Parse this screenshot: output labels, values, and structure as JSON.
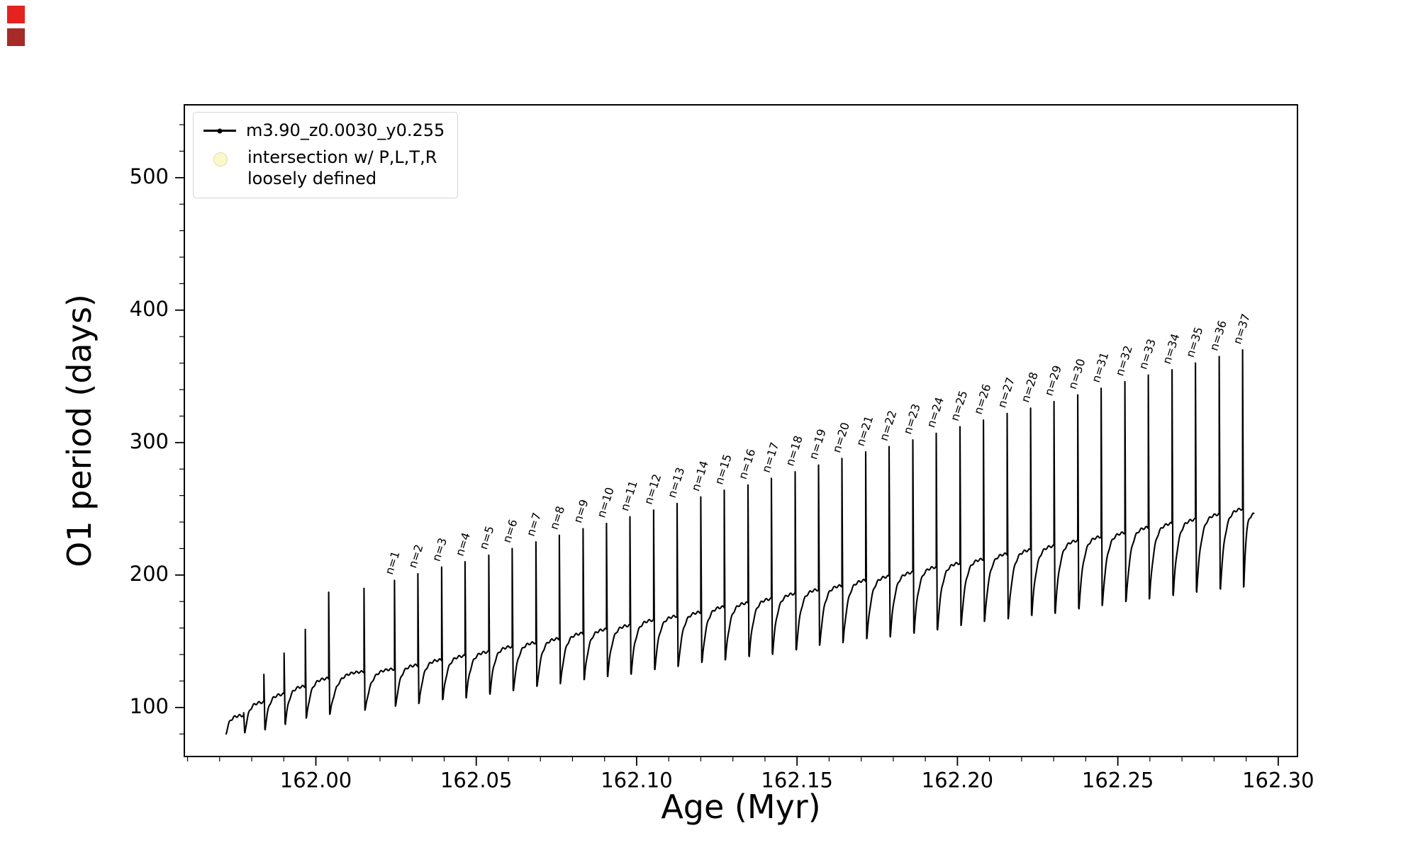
{
  "corner_marks": [
    {
      "name": "red-square-1",
      "color": "#e42320"
    },
    {
      "name": "red-square-2",
      "color": "#a62a28"
    }
  ],
  "axes": {
    "xlabel": "Age (Myr)",
    "ylabel": "O1 period (days)"
  },
  "legend": {
    "series_label": "m3.90_z0.0030_y0.255",
    "intersection_label_line1": "intersection w/ P,L,T,R",
    "intersection_label_line2": "loosely defined",
    "intersection_marker_color": "#fbf8c9",
    "line_color": "#000000"
  },
  "chart_data": {
    "type": "line",
    "title": "",
    "xlabel": "Age (Myr)",
    "ylabel": "O1 period (days)",
    "xlim": [
      161.959,
      162.306
    ],
    "ylim": [
      63,
      555
    ],
    "x_ticks": [
      162.0,
      162.05,
      162.1,
      162.15,
      162.2,
      162.25,
      162.3
    ],
    "x_tick_labels": [
      "162.00",
      "162.05",
      "162.10",
      "162.15",
      "162.20",
      "162.25",
      "162.30"
    ],
    "y_ticks": [
      100,
      200,
      300,
      400,
      500
    ],
    "y_tick_labels": [
      "100",
      "200",
      "300",
      "400",
      "500"
    ],
    "x_minor_step": 0.01,
    "y_minor_step": 20,
    "grid": false,
    "legend_position": "upper-left",
    "line_color": "#000000",
    "start_age": 161.972,
    "series": [
      {
        "name": "m3.90_z0.0030_y0.255"
      }
    ],
    "cycles": [
      {
        "label": null,
        "n": null,
        "age": 161.9775,
        "low": 80,
        "plateau": 94,
        "peak": 96
      },
      {
        "label": null,
        "n": null,
        "age": 161.9838,
        "low": 81,
        "plateau": 104,
        "peak": 125
      },
      {
        "label": null,
        "n": null,
        "age": 161.9901,
        "low": 84,
        "plateau": 110,
        "peak": 141
      },
      {
        "label": null,
        "n": null,
        "age": 161.9967,
        "low": 88,
        "plateau": 116,
        "peak": 159
      },
      {
        "label": null,
        "n": null,
        "age": 162.004,
        "low": 92,
        "plateau": 122,
        "peak": 187
      },
      {
        "label": null,
        "n": null,
        "age": 162.015,
        "low": 95,
        "plateau": 127,
        "peak": 190
      },
      {
        "label": "n=1",
        "n": 1,
        "age": 162.0245,
        "low": 98,
        "plateau": 129,
        "peak": 196
      },
      {
        "label": "n=2",
        "n": 2,
        "age": 162.0318,
        "low": 101,
        "plateau": 132,
        "peak": 201
      },
      {
        "label": "n=3",
        "n": 3,
        "age": 162.0392,
        "low": 103,
        "plateau": 136,
        "peak": 206
      },
      {
        "label": "n=4",
        "n": 4,
        "age": 162.0465,
        "low": 106,
        "plateau": 139,
        "peak": 210
      },
      {
        "label": "n=5",
        "n": 5,
        "age": 162.0539,
        "low": 108,
        "plateau": 142,
        "peak": 215
      },
      {
        "label": "n=6",
        "n": 6,
        "age": 162.0612,
        "low": 111,
        "plateau": 146,
        "peak": 220
      },
      {
        "label": "n=7",
        "n": 7,
        "age": 162.0686,
        "low": 113,
        "plateau": 149,
        "peak": 225
      },
      {
        "label": "n=8",
        "n": 8,
        "age": 162.0759,
        "low": 116,
        "plateau": 152,
        "peak": 230
      },
      {
        "label": "n=9",
        "n": 9,
        "age": 162.0833,
        "low": 118,
        "plateau": 156,
        "peak": 235
      },
      {
        "label": "n=10",
        "n": 10,
        "age": 162.0906,
        "low": 121,
        "plateau": 159,
        "peak": 239
      },
      {
        "label": "n=11",
        "n": 11,
        "age": 162.0979,
        "low": 124,
        "plateau": 162,
        "peak": 244
      },
      {
        "label": "n=12",
        "n": 12,
        "age": 162.1053,
        "low": 126,
        "plateau": 166,
        "peak": 249
      },
      {
        "label": "n=13",
        "n": 13,
        "age": 162.1126,
        "low": 129,
        "plateau": 169,
        "peak": 254
      },
      {
        "label": "n=14",
        "n": 14,
        "age": 162.12,
        "low": 131,
        "plateau": 172,
        "peak": 259
      },
      {
        "label": "n=15",
        "n": 15,
        "age": 162.1273,
        "low": 134,
        "plateau": 176,
        "peak": 264
      },
      {
        "label": "n=16",
        "n": 16,
        "age": 162.1347,
        "low": 136,
        "plateau": 179,
        "peak": 268
      },
      {
        "label": "n=17",
        "n": 17,
        "age": 162.142,
        "low": 139,
        "plateau": 182,
        "peak": 273
      },
      {
        "label": "n=18",
        "n": 18,
        "age": 162.1494,
        "low": 141,
        "plateau": 186,
        "peak": 278
      },
      {
        "label": "n=19",
        "n": 19,
        "age": 162.1567,
        "low": 144,
        "plateau": 189,
        "peak": 283
      },
      {
        "label": "n=20",
        "n": 20,
        "age": 162.164,
        "low": 147,
        "plateau": 192,
        "peak": 288
      },
      {
        "label": "n=21",
        "n": 21,
        "age": 162.1714,
        "low": 149,
        "plateau": 196,
        "peak": 293
      },
      {
        "label": "n=22",
        "n": 22,
        "age": 162.1787,
        "low": 152,
        "plateau": 199,
        "peak": 297
      },
      {
        "label": "n=23",
        "n": 23,
        "age": 162.1861,
        "low": 154,
        "plateau": 202,
        "peak": 302
      },
      {
        "label": "n=24",
        "n": 24,
        "age": 162.1934,
        "low": 157,
        "plateau": 206,
        "peak": 307
      },
      {
        "label": "n=25",
        "n": 25,
        "age": 162.2008,
        "low": 159,
        "plateau": 209,
        "peak": 312
      },
      {
        "label": "n=26",
        "n": 26,
        "age": 162.2081,
        "low": 162,
        "plateau": 212,
        "peak": 317
      },
      {
        "label": "n=27",
        "n": 27,
        "age": 162.2155,
        "low": 165,
        "plateau": 216,
        "peak": 322
      },
      {
        "label": "n=28",
        "n": 28,
        "age": 162.2228,
        "low": 167,
        "plateau": 219,
        "peak": 326
      },
      {
        "label": "n=29",
        "n": 29,
        "age": 162.2301,
        "low": 170,
        "plateau": 222,
        "peak": 331
      },
      {
        "label": "n=30",
        "n": 30,
        "age": 162.2375,
        "low": 172,
        "plateau": 226,
        "peak": 336
      },
      {
        "label": "n=31",
        "n": 31,
        "age": 162.2448,
        "low": 175,
        "plateau": 229,
        "peak": 341
      },
      {
        "label": "n=32",
        "n": 32,
        "age": 162.2522,
        "low": 177,
        "plateau": 232,
        "peak": 346
      },
      {
        "label": "n=33",
        "n": 33,
        "age": 162.2595,
        "low": 180,
        "plateau": 236,
        "peak": 351
      },
      {
        "label": "n=34",
        "n": 34,
        "age": 162.2669,
        "low": 182,
        "plateau": 239,
        "peak": 355
      },
      {
        "label": "n=35",
        "n": 35,
        "age": 162.2742,
        "low": 185,
        "plateau": 242,
        "peak": 360
      },
      {
        "label": "n=36",
        "n": 36,
        "age": 162.2816,
        "low": 188,
        "plateau": 246,
        "peak": 365
      },
      {
        "label": "n=37",
        "n": 37,
        "age": 162.2889,
        "low": 190,
        "plateau": 250,
        "peak": 370
      },
      {
        "label": null,
        "n": null,
        "age": 162.2925,
        "low": 191,
        "plateau": 246,
        "peak": null
      }
    ]
  }
}
